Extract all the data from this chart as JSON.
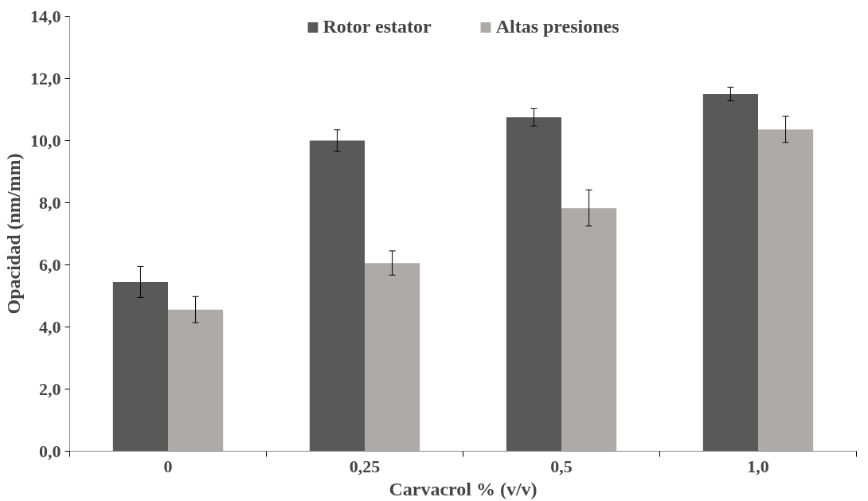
{
  "chart_data": {
    "type": "bar",
    "xlabel": "Carvacrol % (v/v)",
    "ylabel": "Opacidad (nm/mm)",
    "categories": [
      "0",
      "0,25",
      "0,5",
      "1,0"
    ],
    "series": [
      {
        "name": "Rotor estator",
        "color": "#595959",
        "values": [
          5.45,
          10.0,
          10.75,
          11.5
        ],
        "errors": [
          0.5,
          0.35,
          0.28,
          0.22
        ]
      },
      {
        "name": "Altas presiones",
        "color": "#aeaaaa",
        "values": [
          4.56,
          6.06,
          7.83,
          10.36
        ],
        "errors": [
          0.42,
          0.39,
          0.58,
          0.42
        ]
      }
    ],
    "ylim": [
      0,
      14
    ],
    "yticks": [
      {
        "value": 0,
        "label": "0,0"
      },
      {
        "value": 2,
        "label": "2,0"
      },
      {
        "value": 4,
        "label": "4,0"
      },
      {
        "value": 6,
        "label": "6,0"
      },
      {
        "value": 8,
        "label": "8,0"
      },
      {
        "value": 10,
        "label": "10,0"
      },
      {
        "value": 12,
        "label": "12,0"
      },
      {
        "value": 14,
        "label": "14,0"
      }
    ],
    "grid": false,
    "legend": "top"
  }
}
